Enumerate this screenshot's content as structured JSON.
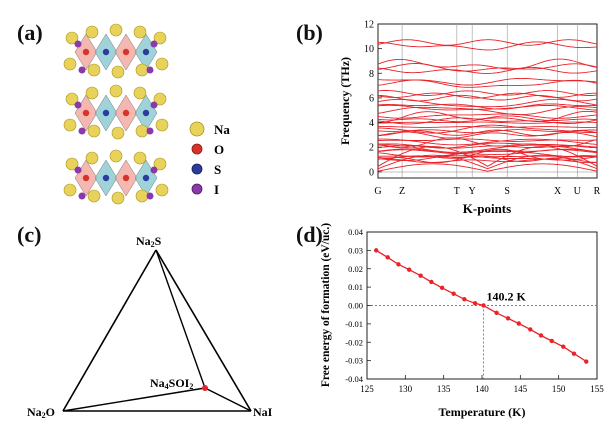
{
  "panels": {
    "a": {
      "label": "(a)",
      "legend": [
        {
          "symbol": "Na",
          "color": "#e8d25a"
        },
        {
          "symbol": "O",
          "color": "#d8322a"
        },
        {
          "symbol": "S",
          "color": "#2c3c9a"
        },
        {
          "symbol": "I",
          "color": "#8a3aa8"
        }
      ]
    },
    "b": {
      "label": "(b)"
    },
    "c": {
      "label": "(c)",
      "vertices": {
        "top": "Na2S",
        "left": "Na2O",
        "right": "NaI",
        "point": "Na4SOI2"
      }
    },
    "d": {
      "label": "(d)",
      "annotation": "140.2 K"
    }
  },
  "chart_data": [
    {
      "type": "line",
      "panel": "b",
      "title": "",
      "xlabel": "K-points",
      "ylabel": "Frequency (THz)",
      "ylim": [
        -0.5,
        12
      ],
      "yticks": [
        0,
        2,
        4,
        6,
        8,
        10,
        12
      ],
      "kpoints": [
        "G",
        "Z",
        "T",
        "Y",
        "S",
        "X",
        "U",
        "R"
      ],
      "kpoint_positions": [
        0,
        0.11,
        0.36,
        0.43,
        0.59,
        0.82,
        0.91,
        1.0
      ],
      "band_groups": [
        {
          "base": 0.05,
          "count": 3,
          "spread": 0.6
        },
        {
          "base": 0.9,
          "count": 8,
          "spread": 0.9
        },
        {
          "base": 1.9,
          "count": 6,
          "spread": 0.8
        },
        {
          "base": 3.0,
          "count": 5,
          "spread": 0.8
        },
        {
          "base": 4.0,
          "count": 5,
          "spread": 0.7
        },
        {
          "base": 5.0,
          "count": 4,
          "spread": 0.7
        },
        {
          "base": 6.0,
          "count": 3,
          "spread": 0.6
        },
        {
          "base": 7.1,
          "count": 2,
          "spread": 0.5
        },
        {
          "base": 8.2,
          "count": 3,
          "spread": 0.7
        },
        {
          "base": 10.2,
          "count": 2,
          "spread": 0.6
        }
      ],
      "line_color": "#e8232a"
    },
    {
      "type": "line",
      "panel": "d",
      "title": "",
      "xlabel": "Temperature (K)",
      "ylabel": "Free energy of formation (eV/uc.)",
      "xlim": [
        125,
        155
      ],
      "ylim": [
        -0.04,
        0.04
      ],
      "xticks": [
        125,
        130,
        135,
        140,
        145,
        150,
        155
      ],
      "yticks": [
        -0.04,
        -0.03,
        -0.02,
        -0.01,
        0.0,
        0.01,
        0.02,
        0.03,
        0.04
      ],
      "ytick_labels": [
        "-0.04",
        "-0.03",
        "-0.02",
        "-0.01",
        "0.00",
        "0.01",
        "0.02",
        "0.03",
        "0.04"
      ],
      "x": [
        126.2,
        127.7,
        129.1,
        130.5,
        132.0,
        133.4,
        134.8,
        136.3,
        137.7,
        139.1,
        140.2,
        141.9,
        143.4,
        144.8,
        146.3,
        147.7,
        149.1,
        150.6,
        152.0,
        153.6
      ],
      "y": [
        0.03,
        0.0262,
        0.0224,
        0.0195,
        0.0162,
        0.0128,
        0.0096,
        0.0064,
        0.0034,
        0.0012,
        0.0,
        -0.004,
        -0.007,
        -0.0098,
        -0.013,
        -0.0163,
        -0.0193,
        -0.0224,
        -0.0262,
        -0.0305
      ],
      "crossing": {
        "x": 140.2,
        "y": 0.0
      },
      "line_color": "#e8232a"
    }
  ]
}
